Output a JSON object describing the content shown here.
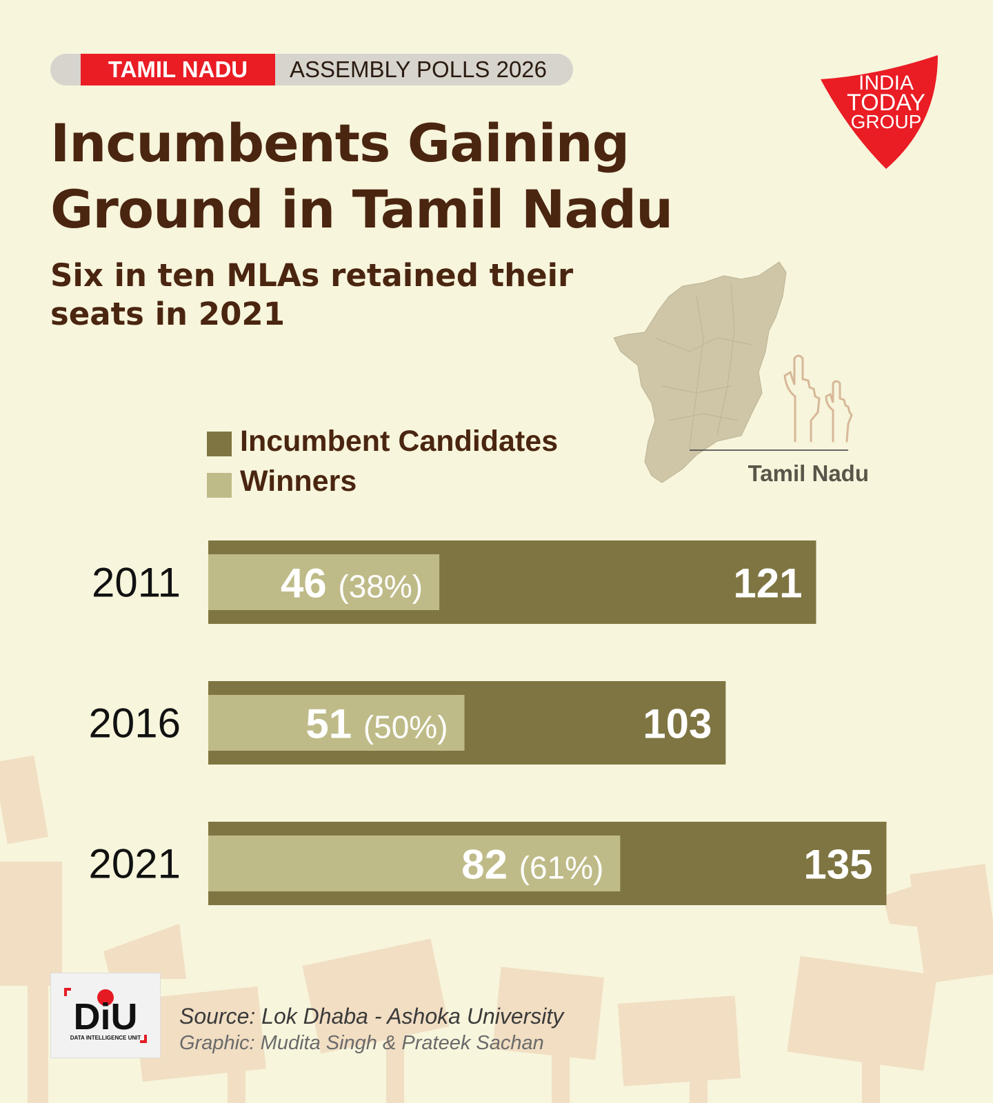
{
  "header": {
    "state_tag": "TAMIL NADU",
    "event_tag": "ASSEMBLY POLLS 2026"
  },
  "title_lines": [
    "Incumbents Gaining",
    "Ground in Tamil Nadu"
  ],
  "subtitle_lines": [
    "Six in ten MLAs retained their",
    "seats in 2021"
  ],
  "logo": {
    "line1": "INDIA",
    "line2": "TODAY",
    "line3": "GROUP",
    "color": "#ea1c24"
  },
  "map": {
    "label": "Tamil Nadu",
    "fill": "#cfc6a8"
  },
  "legend": [
    {
      "label": "Incumbent Candidates",
      "color": "#7f7542"
    },
    {
      "label": "Winners",
      "color": "#bfbb88"
    }
  ],
  "chart_data": {
    "type": "bar",
    "orientation": "horizontal",
    "categories": [
      "2011",
      "2016",
      "2021"
    ],
    "series": [
      {
        "name": "Incumbent Candidates",
        "values": [
          121,
          103,
          135
        ],
        "color": "#7f7542"
      },
      {
        "name": "Winners",
        "values": [
          46,
          51,
          82
        ],
        "color": "#bfbb88"
      }
    ],
    "winner_share_labels": [
      "(38%)",
      "(50%)",
      "(61%)"
    ]
  },
  "footer": {
    "badge_text": "DiU",
    "badge_subtext": "DATA INTELLIGENCE UNIT",
    "source": "Source: Lok Dhaba - Ashoka University",
    "credit": "Graphic: Mudita Singh & Prateek Sachan"
  }
}
